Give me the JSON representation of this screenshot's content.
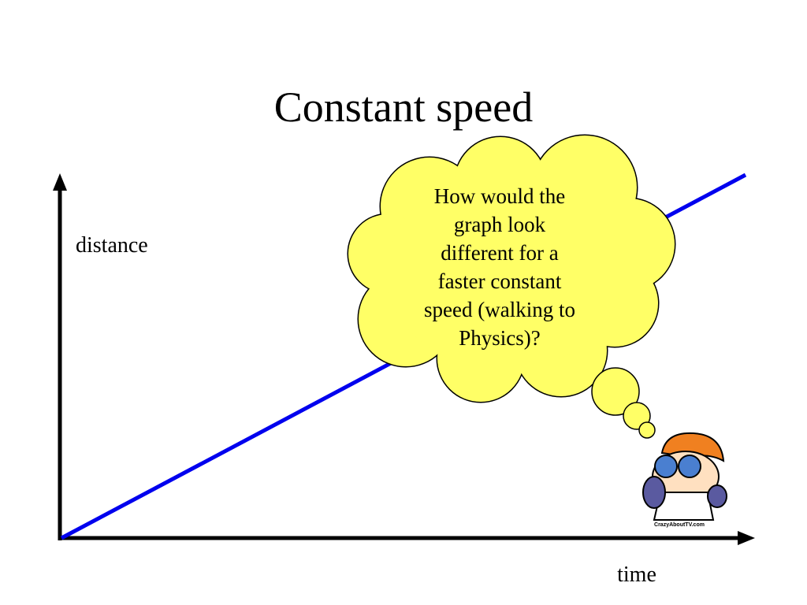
{
  "title": "Constant speed",
  "y_axis_label": "distance",
  "x_axis_label": "time",
  "thought_bubble": {
    "lines": [
      "How would the",
      "graph look",
      "different for a",
      "faster constant",
      "speed (walking to",
      "Physics)?"
    ]
  },
  "cartoon_caption": "CrazyAboutTV.com"
}
